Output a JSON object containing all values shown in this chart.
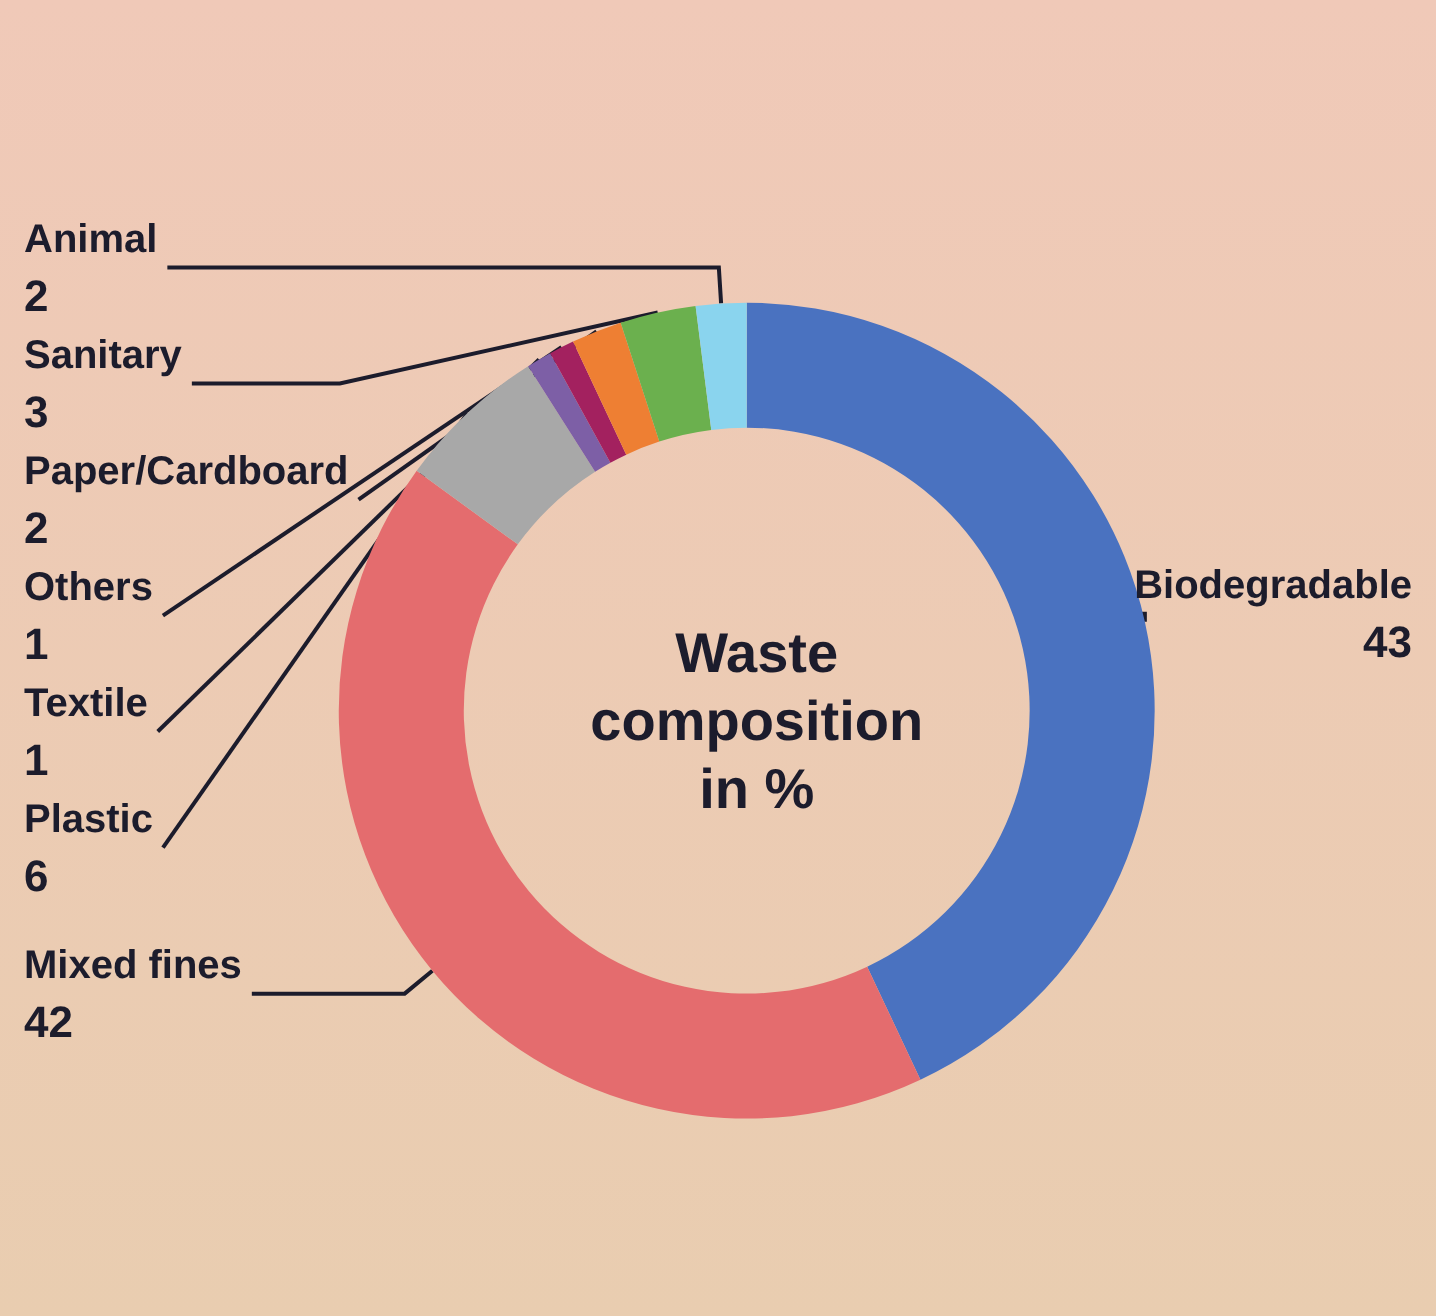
{
  "chart_data": {
    "type": "donut",
    "title": "Waste\ncomposition\nin %",
    "categories": [
      "Biodegradable",
      "Mixed fines",
      "Plastic",
      "Textile",
      "Others",
      "Paper/Cardboard",
      "Sanitary",
      "Animal"
    ],
    "values": [
      43,
      42,
      6,
      1,
      1,
      2,
      3,
      2
    ],
    "colors": [
      "#4a72c0",
      "#e46c6e",
      "#a8a8a8",
      "#7d5fa6",
      "#a3215f",
      "#ee7f33",
      "#6bb04e",
      "#8ad4ee"
    ],
    "data_labels": true,
    "legend": false
  }
}
